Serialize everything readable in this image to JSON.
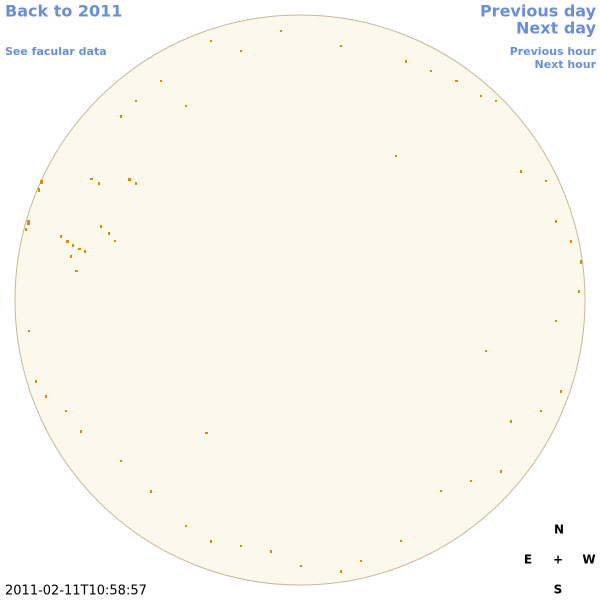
{
  "links": {
    "back": "Back to 2011",
    "facular": "See facular data",
    "previous_day": "Previous day",
    "next_day": "Next day",
    "previous_hour": "Previous hour",
    "next_hour": "Next hour"
  },
  "compass": {
    "north": "N",
    "east": "E",
    "center": "+",
    "west": "W",
    "south": "S"
  },
  "timestamp": "2011-02-11T10:58:57"
}
